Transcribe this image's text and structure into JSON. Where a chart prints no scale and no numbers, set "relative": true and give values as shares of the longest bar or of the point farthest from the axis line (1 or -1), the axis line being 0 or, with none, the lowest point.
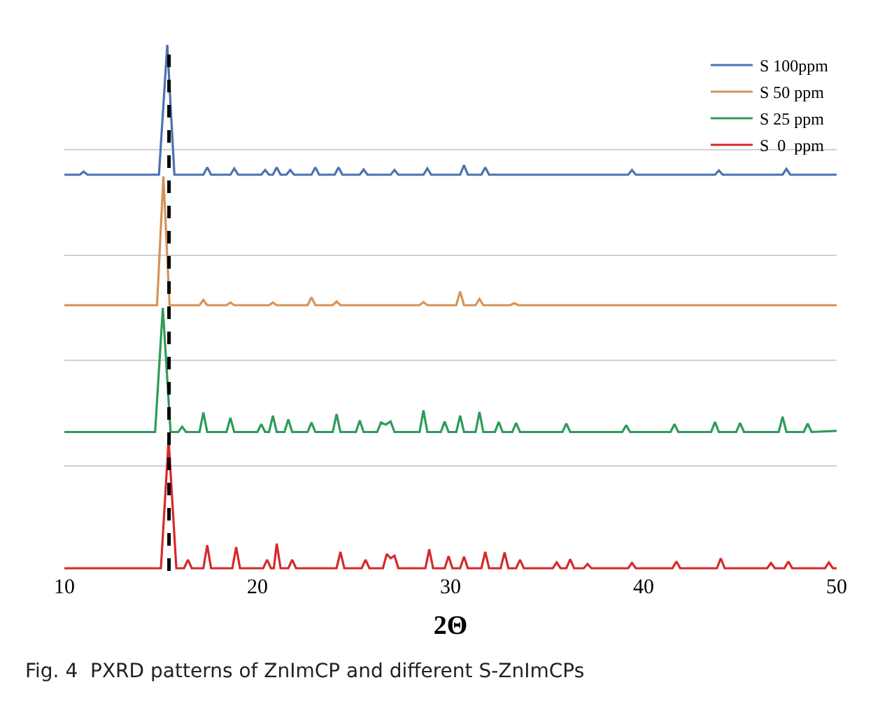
{
  "chart_data": {
    "type": "line",
    "relative": true,
    "xlabel": "2Θ",
    "xlim": [
      10,
      50
    ],
    "xticks": [
      10,
      20,
      30,
      40,
      50
    ],
    "grid": "y",
    "legend": "top right",
    "tick_labels": "x",
    "annotations": [
      "Fig. 4  PXRD patterns of ZnImCP and different S-ZnImCPs"
    ],
    "ref_lines": [
      {
        "axis": "x",
        "value": 15.42,
        "color": "#000000",
        "line_style": "dashed"
      }
    ],
    "series": [
      {
        "name": "S 100ppm",
        "color": "#4a72b0",
        "x": [
          10,
          10.8,
          11.0,
          11.2,
          14.9,
          15.33,
          15.7,
          17.2,
          17.4,
          17.6,
          18.6,
          18.8,
          19.0,
          20.2,
          20.4,
          20.6,
          20.8,
          21.0,
          21.2,
          21.5,
          21.7,
          21.9,
          22.8,
          23.0,
          23.2,
          24.0,
          24.2,
          24.4,
          25.3,
          25.5,
          25.7,
          26.9,
          27.1,
          27.3,
          28.6,
          28.8,
          29.0,
          30.5,
          30.7,
          30.9,
          31.6,
          31.8,
          32.0,
          39.2,
          39.4,
          39.6,
          43.7,
          43.9,
          44.1,
          47.2,
          47.4,
          47.6,
          50
        ],
        "values": [
          0.753,
          0.753,
          0.759,
          0.753,
          0.753,
          1,
          0.753,
          0.753,
          0.767,
          0.753,
          0.753,
          0.765,
          0.753,
          0.753,
          0.762,
          0.753,
          0.753,
          0.767,
          0.753,
          0.753,
          0.762,
          0.753,
          0.753,
          0.767,
          0.753,
          0.753,
          0.767,
          0.753,
          0.753,
          0.763,
          0.753,
          0.753,
          0.762,
          0.753,
          0.753,
          0.765,
          0.753,
          0.753,
          0.771,
          0.753,
          0.753,
          0.767,
          0.753,
          0.753,
          0.762,
          0.753,
          0.753,
          0.761,
          0.753,
          0.753,
          0.764,
          0.753,
          0.753
        ]
      },
      {
        "name": "S 50 ppm",
        "color": "#d4935a",
        "x": [
          10,
          14.8,
          15.13,
          15.45,
          17.0,
          17.2,
          17.4,
          18.4,
          18.6,
          18.8,
          20.6,
          20.8,
          21.0,
          22.6,
          22.8,
          23.0,
          23.9,
          24.1,
          24.3,
          28.4,
          28.6,
          28.8,
          30.3,
          30.5,
          30.7,
          31.3,
          31.5,
          31.7,
          33.1,
          33.3,
          33.5,
          50
        ],
        "values": [
          0.505,
          0.505,
          0.75,
          0.505,
          0.505,
          0.515,
          0.505,
          0.505,
          0.51,
          0.505,
          0.505,
          0.51,
          0.505,
          0.505,
          0.52,
          0.505,
          0.505,
          0.512,
          0.505,
          0.505,
          0.511,
          0.505,
          0.505,
          0.531,
          0.505,
          0.505,
          0.517,
          0.505,
          0.505,
          0.509,
          0.505,
          0.505
        ]
      },
      {
        "name": "S 25 ppm",
        "color": "#2e9b5a",
        "x": [
          10,
          14.7,
          15.1,
          15.5,
          15.9,
          16.1,
          16.3,
          17.0,
          17.2,
          17.4,
          18.4,
          18.6,
          18.8,
          20.0,
          20.2,
          20.4,
          20.6,
          20.8,
          21.0,
          21.4,
          21.6,
          21.8,
          22.6,
          22.8,
          23.0,
          23.9,
          24.1,
          24.3,
          25.1,
          25.3,
          25.5,
          26.2,
          26.4,
          26.65,
          26.9,
          27.1,
          28.4,
          28.6,
          28.8,
          29.5,
          29.7,
          29.9,
          30.3,
          30.5,
          30.7,
          31.3,
          31.5,
          31.7,
          32.3,
          32.5,
          32.7,
          33.2,
          33.4,
          33.6,
          35.8,
          36.0,
          36.2,
          38.9,
          39.1,
          39.3,
          41.4,
          41.6,
          41.8,
          43.5,
          43.7,
          43.9,
          44.8,
          45.0,
          45.2,
          47.0,
          47.2,
          47.4,
          48.3,
          48.5,
          48.7,
          50
        ],
        "values": [
          0.264,
          0.264,
          0.5,
          0.264,
          0.264,
          0.274,
          0.264,
          0.264,
          0.301,
          0.264,
          0.264,
          0.291,
          0.264,
          0.264,
          0.279,
          0.264,
          0.264,
          0.295,
          0.264,
          0.264,
          0.288,
          0.264,
          0.264,
          0.282,
          0.264,
          0.264,
          0.298,
          0.264,
          0.264,
          0.286,
          0.264,
          0.264,
          0.282,
          0.278,
          0.284,
          0.264,
          0.264,
          0.305,
          0.264,
          0.264,
          0.284,
          0.264,
          0.264,
          0.295,
          0.264,
          0.264,
          0.302,
          0.264,
          0.264,
          0.283,
          0.264,
          0.264,
          0.281,
          0.264,
          0.264,
          0.28,
          0.264,
          0.264,
          0.277,
          0.264,
          0.264,
          0.279,
          0.264,
          0.264,
          0.283,
          0.264,
          0.264,
          0.281,
          0.264,
          0.264,
          0.293,
          0.264,
          0.264,
          0.28,
          0.264,
          0.266
        ]
      },
      {
        "name": "S  0  ppm",
        "color": "#d42a2a",
        "x": [
          10,
          15.0,
          15.4,
          15.8,
          16.2,
          16.4,
          16.6,
          17.2,
          17.4,
          17.6,
          18.7,
          18.9,
          19.1,
          20.3,
          20.5,
          20.7,
          20.85,
          21.0,
          21.2,
          21.6,
          21.8,
          22.0,
          24.1,
          24.3,
          24.5,
          25.4,
          25.6,
          25.8,
          26.5,
          26.7,
          26.9,
          27.1,
          27.3,
          28.7,
          28.9,
          29.1,
          29.7,
          29.9,
          30.1,
          30.5,
          30.7,
          30.9,
          31.6,
          31.8,
          32.0,
          32.6,
          32.8,
          33.0,
          33.4,
          33.6,
          33.8,
          35.3,
          35.5,
          35.7,
          36.0,
          36.2,
          36.4,
          36.9,
          37.1,
          37.3,
          39.2,
          39.4,
          39.6,
          41.5,
          41.7,
          41.9,
          43.8,
          44.0,
          44.2,
          46.4,
          46.6,
          46.8,
          47.3,
          47.5,
          47.7,
          49.4,
          49.6,
          49.8,
          50
        ],
        "values": [
          0.005,
          0.005,
          0.25,
          0.005,
          0.005,
          0.021,
          0.005,
          0.005,
          0.049,
          0.005,
          0.005,
          0.045,
          0.005,
          0.005,
          0.021,
          0.005,
          0.005,
          0.052,
          0.005,
          0.005,
          0.021,
          0.005,
          0.005,
          0.036,
          0.005,
          0.005,
          0.021,
          0.005,
          0.005,
          0.032,
          0.024,
          0.029,
          0.005,
          0.005,
          0.041,
          0.005,
          0.005,
          0.028,
          0.005,
          0.005,
          0.027,
          0.005,
          0.005,
          0.036,
          0.005,
          0.005,
          0.035,
          0.005,
          0.005,
          0.021,
          0.005,
          0.005,
          0.016,
          0.005,
          0.005,
          0.022,
          0.005,
          0.005,
          0.013,
          0.005,
          0.005,
          0.015,
          0.005,
          0.005,
          0.018,
          0.005,
          0.005,
          0.024,
          0.005,
          0.005,
          0.015,
          0.005,
          0.005,
          0.018,
          0.005,
          0.005,
          0.016,
          0.005,
          0.005
        ]
      }
    ]
  }
}
